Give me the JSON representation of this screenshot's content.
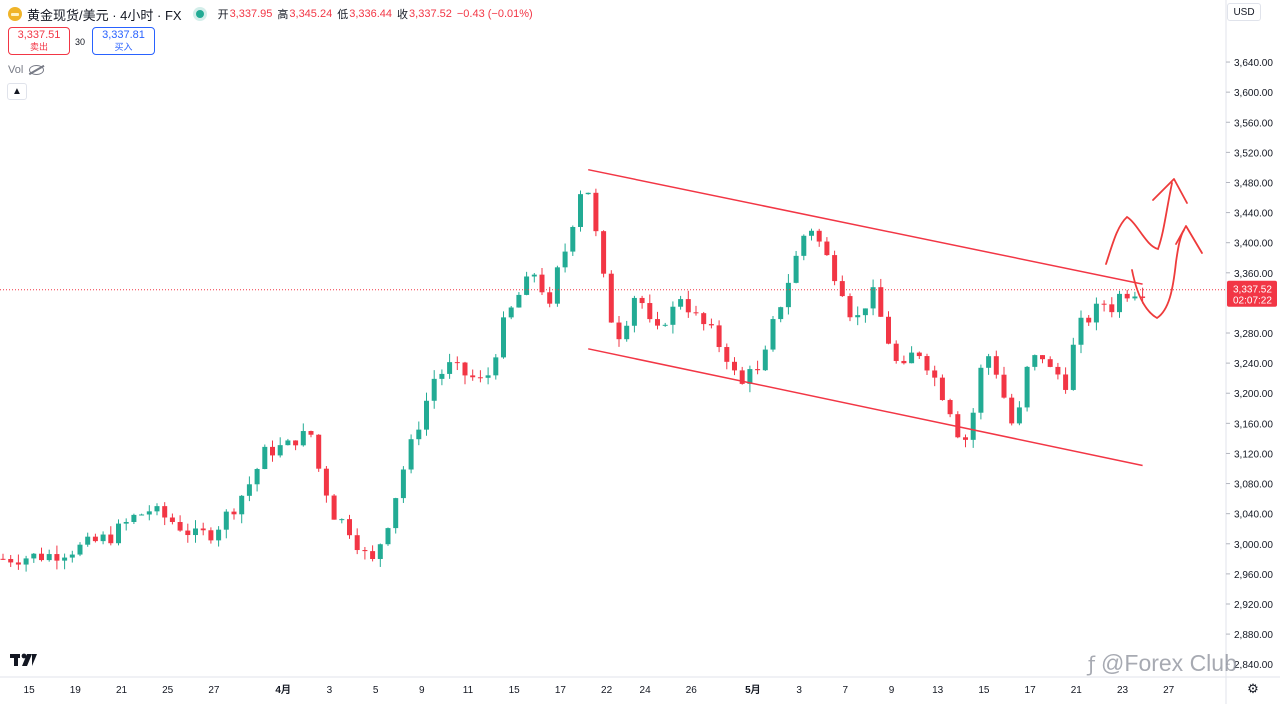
{
  "header": {
    "symbol_title": "黄金现货/美元 · 4小时 · FX",
    "open_label": "开",
    "open_value": "3,337.95",
    "high_label": "高",
    "high_value": "3,345.24",
    "low_label": "低",
    "low_value": "3,336.44",
    "close_label": "收",
    "close_value": "3,337.52",
    "change_value": "−0.43 (−0.01%)"
  },
  "trade": {
    "sell_price": "3,337.51",
    "sell_label": "卖出",
    "spread": "30",
    "buy_price": "3,337.81",
    "buy_label": "买入"
  },
  "volume_label": "Vol",
  "currency_label": "USD",
  "watermark_text": "@Forex Club",
  "icons": [
    "gold-coin-icon",
    "status-dot-icon",
    "eye-hidden-icon",
    "chevron-up-icon",
    "tradingview-logo-icon",
    "settings-gear-icon",
    "weibo-logo-icon"
  ],
  "colors": {
    "up": "#22ab94",
    "down": "#f23645",
    "annotation": "#ee3b3b",
    "price_tag": "#f23645",
    "buy": "#2962ff"
  },
  "chart_data": {
    "type": "candlestick",
    "symbol": "XAUUSD",
    "timeframe": "4H",
    "x_ticks": [
      "15",
      "19",
      "21",
      "25",
      "27",
      "4月",
      "3",
      "5",
      "9",
      "11",
      "15",
      "17",
      "22",
      "24",
      "26",
      "5月",
      "3",
      "7",
      "9",
      "13",
      "15",
      "17",
      "21",
      "23",
      "27"
    ],
    "y_ticks": [
      "3,640.00",
      "3,600.00",
      "3,560.00",
      "3,520.00",
      "3,480.00",
      "3,440.00",
      "3,400.00",
      "3,360.00",
      "3,280.00",
      "3,240.00",
      "3,200.00",
      "3,160.00",
      "3,120.00",
      "3,080.00",
      "3,040.00",
      "3,000.00",
      "2,960.00",
      "2,920.00",
      "2,880.00",
      "2,840.00"
    ],
    "ylim": [
      2823,
      3664
    ],
    "last_price": "3,337.52",
    "countdown": "02:07:22",
    "last_price_value": 3337.52,
    "price_path": [
      [
        0,
        2980
      ],
      [
        6,
        2985
      ],
      [
        10,
        2995
      ],
      [
        14,
        3010
      ],
      [
        17,
        3035
      ],
      [
        19,
        3045
      ],
      [
        22,
        3030
      ],
      [
        25,
        3010
      ],
      [
        27,
        3015
      ],
      [
        28,
        3025
      ],
      [
        30,
        3050
      ],
      [
        32,
        3080
      ],
      [
        34,
        3120
      ],
      [
        35,
        3125
      ],
      [
        37,
        3130
      ],
      [
        38,
        3140
      ],
      [
        40,
        3145
      ],
      [
        41,
        3100
      ],
      [
        43,
        3040
      ],
      [
        45,
        3020
      ],
      [
        47,
        2985
      ],
      [
        48,
        2975
      ],
      [
        50,
        3030
      ],
      [
        52,
        3100
      ],
      [
        54,
        3160
      ],
      [
        56,
        3220
      ],
      [
        58,
        3235
      ],
      [
        60,
        3225
      ],
      [
        62,
        3215
      ],
      [
        63,
        3225
      ],
      [
        65,
        3290
      ],
      [
        67,
        3330
      ],
      [
        69,
        3360
      ],
      [
        70,
        3340
      ],
      [
        71,
        3310
      ],
      [
        72,
        3360
      ],
      [
        73,
        3390
      ],
      [
        74,
        3430
      ],
      [
        75,
        3470
      ],
      [
        75.5,
        3490
      ],
      [
        76,
        3470
      ],
      [
        77,
        3410
      ],
      [
        78,
        3350
      ],
      [
        79,
        3300
      ],
      [
        80,
        3280
      ],
      [
        81,
        3300
      ],
      [
        82,
        3330
      ],
      [
        83,
        3320
      ],
      [
        84,
        3290
      ],
      [
        85,
        3280
      ],
      [
        86,
        3300
      ],
      [
        87,
        3310
      ],
      [
        88,
        3330
      ],
      [
        89,
        3315
      ],
      [
        90,
        3300
      ],
      [
        91,
        3290
      ],
      [
        92,
        3280
      ],
      [
        93,
        3265
      ],
      [
        94,
        3250
      ],
      [
        95,
        3225
      ],
      [
        96,
        3210
      ],
      [
        97,
        3240
      ],
      [
        98,
        3225
      ],
      [
        99,
        3250
      ],
      [
        100,
        3290
      ],
      [
        101,
        3320
      ],
      [
        102,
        3350
      ],
      [
        103,
        3380
      ],
      [
        104,
        3410
      ],
      [
        105,
        3420
      ],
      [
        106,
        3400
      ],
      [
        107,
        3380
      ],
      [
        108,
        3360
      ],
      [
        109,
        3340
      ],
      [
        110,
        3310
      ],
      [
        111,
        3300
      ],
      [
        112,
        3320
      ],
      [
        113,
        3330
      ],
      [
        114,
        3300
      ],
      [
        115,
        3270
      ],
      [
        116,
        3240
      ],
      [
        117,
        3230
      ],
      [
        118,
        3250
      ],
      [
        119,
        3255
      ],
      [
        120,
        3240
      ],
      [
        121,
        3220
      ],
      [
        122,
        3200
      ],
      [
        123,
        3180
      ],
      [
        124,
        3150
      ],
      [
        124.5,
        3130
      ],
      [
        125,
        3140
      ],
      [
        126,
        3175
      ],
      [
        127,
        3230
      ],
      [
        128,
        3250
      ],
      [
        129,
        3230
      ],
      [
        130,
        3195
      ],
      [
        131,
        3160
      ],
      [
        132,
        3175
      ],
      [
        133,
        3230
      ],
      [
        134,
        3245
      ],
      [
        135,
        3250
      ],
      [
        136,
        3230
      ],
      [
        137,
        3225
      ],
      [
        138,
        3215
      ],
      [
        139,
        3260
      ],
      [
        140,
        3290
      ],
      [
        141,
        3300
      ],
      [
        142,
        3310
      ],
      [
        143,
        3320
      ],
      [
        144,
        3315
      ],
      [
        145,
        3330
      ],
      [
        146,
        3335
      ],
      [
        147,
        3337.52
      ]
    ],
    "drawings": {
      "channel_upper": [
        [
          76,
          3497
        ],
        [
          148,
          3345
        ]
      ],
      "channel_lower": [
        [
          76,
          3259
        ],
        [
          148,
          3104
        ]
      ]
    }
  }
}
